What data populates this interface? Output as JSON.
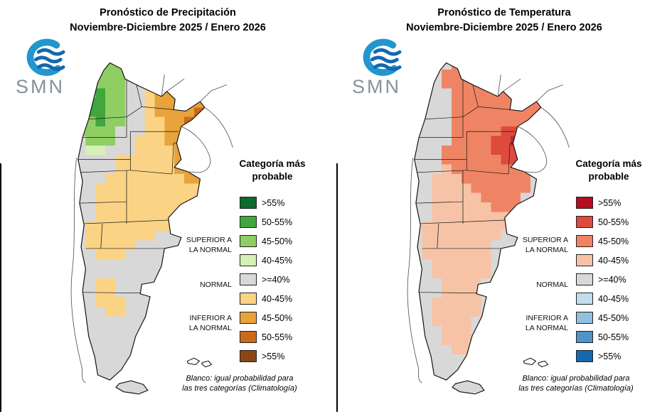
{
  "panels": [
    {
      "title_line1": "Pronóstico de Precipitación",
      "title_line2": "Noviembre-Diciembre 2025 / Enero 2026",
      "logo_text": "SMN",
      "legend": {
        "title_line1": "Categoría más",
        "title_line2": "probable",
        "items": [
          {
            "label": ">55%",
            "color": "#0c6b2d"
          },
          {
            "label": "50-55%",
            "color": "#41a63c"
          },
          {
            "label": "45-50%",
            "color": "#8fce63"
          },
          {
            "label": "40-45%",
            "color": "#d7f0b6"
          },
          {
            "label": ">=40%",
            "color": "#d8d8d8"
          },
          {
            "label": "40-45%",
            "color": "#fbd384"
          },
          {
            "label": "45-50%",
            "color": "#e8a33b"
          },
          {
            "label": "50-55%",
            "color": "#cc6a1b"
          },
          {
            "label": ">55%",
            "color": "#8a4715"
          }
        ],
        "groups": {
          "superior_line1": "SUPERIOR A",
          "superior_line2": "LA NORMAL",
          "normal": "NORMAL",
          "inferior_line1": "INFERIOR A",
          "inferior_line2": "LA NORMAL"
        }
      },
      "footnote_line1": "Blanco: igual probabilidad para",
      "footnote_line2": "las tres categorías (Climatología)",
      "map": {
        "palette": {
          "N": "#d8d8d8",
          "G": "#8fce63",
          "D": "#41a63c",
          "g": "#d7f0b6",
          "Y": "#fbd384",
          "O": "#e8a33b",
          "B": "#cc6a1b",
          "W": "#8a4715"
        },
        "grid": [
          "NNNGGGNNNNNNNNNN",
          "NNGGGGNNNNNNNNNN",
          "NGGGGGNNYYOOOONN",
          "NGGDGGNNYOOOOONN",
          "NGDDGGNNYOOOOOON",
          "NGDDGGNNYOOOOBON",
          "NGGDGGNNYYOOBBON",
          "NGGGGNNNYYOOOBON",
          "NNGGGNNYYYOOOOON",
          "NNggNNNYYYYOOONN",
          "NNNNNYYYYYYOOONN",
          "NNNNNYYYYYYOOBNN",
          "NNNNYYYYYYYYOONN",
          "NNNYYYYYYYYYYYNN",
          "NNNYYYYYYYYYYYNN",
          "NNNYYYYYYYYYYNNN",
          "NNNYYYYYYYYYNNNN",
          "NNYYYYYYYYYNNNNN",
          "NNYYYYYYYNNNNNNN",
          "NNYYYYYNNNNNNNNN",
          "NNNYYYNNNNNNNNNN",
          "NNNNNNNNNNNNNNNN",
          "NNNNNNNNNNNNNNNN",
          "NNNYYNNNNNNNNNNN",
          "NNNYYNNNNNNNNNNN",
          "NNNYYYNNNNNNNNNN",
          "NNNNYYNNNNNNNNNN",
          "NNNNNNNNNNNNNNNN",
          "NNNNNNNNNNNNNNNN",
          "NNNNNNNNNNNNNNNN",
          "NNNNNNNNYYNNNNNN",
          "NNNNNNNYYNNNNNNN",
          "NNNNNNNNNNNNNNNN",
          "NNNNNNNNNNNNNNNN",
          "NNNNNNNNNNNNNNNN"
        ]
      }
    },
    {
      "title_line1": "Pronóstico de Temperatura",
      "title_line2": "Noviembre-Diciembre 2025 / Enero 2026",
      "logo_text": "SMN",
      "legend": {
        "title_line1": "Categoría más",
        "title_line2": "probable",
        "items": [
          {
            "label": ">55%",
            "color": "#b60d24"
          },
          {
            "label": "50-55%",
            "color": "#df4a3e"
          },
          {
            "label": "45-50%",
            "color": "#ef8464"
          },
          {
            "label": "40-45%",
            "color": "#f7c3a7"
          },
          {
            "label": ">=40%",
            "color": "#d8d8d8"
          },
          {
            "label": "40-45%",
            "color": "#c3dcee"
          },
          {
            "label": "45-50%",
            "color": "#92c0de"
          },
          {
            "label": "50-55%",
            "color": "#4e94c8"
          },
          {
            "label": ">55%",
            "color": "#1668ad"
          }
        ],
        "groups": {
          "superior_line1": "SUPERIOR A",
          "superior_line2": "LA NORMAL",
          "normal": "NORMAL",
          "inferior_line1": "INFERIOR A",
          "inferior_line2": "LA NORMAL"
        }
      },
      "footnote_line1": "Blanco: igual probabilidad para",
      "footnote_line2": "las tres categorías (Climatología)",
      "map": {
        "palette": {
          "N": "#d8d8d8",
          "S": "#ef8464",
          "R": "#df4a3e",
          "D": "#c2252f",
          "P": "#f7c3a7"
        },
        "grid": [
          "NNNNNSSNNNNNNNNN",
          "NNNNSSSSSSNNNNNN",
          "NNNNSSSSSSSSNNNN",
          "NNNNNSSSSSSSSNNN",
          "NNNNNSSSSSSSSSSN",
          "NNNNNSSSSSSSSSSN",
          "NNNNNSSSSSSSSSNN",
          "NNNNNSSSSSRRSSNN",
          "NNNNNSSSSRRDRSNN",
          "NNNNSSSSSRRRRNNN",
          "NNNNSSSSSSRRSNNN",
          "NNNNPSSSSSSSSNNN",
          "NNNPPPSSSSSSSNNN",
          "NNNPPPPSSSSSSNNN",
          "NNNPPPPPSSSSNNNN",
          "NNNPPPPPPSSSNNNN",
          "NNNPPPPPPPPNNNNN",
          "NNPPPPPPPPPNNNNN",
          "NNPPPPPPPPNNNNNN",
          "NNPPPPPPPNNNNNNN",
          "NNPPPPPPPNNNNNNN",
          "NNNPPPPPPNNNNNNN",
          "NNNPPPPPPNNNNNNN",
          "NNNNPPPPNNNNNNNN",
          "NNNNPPPPNNNNNNNN",
          "NNNPPPPPNNNNNNNN",
          "NNNPPPPPNNNNNNNN",
          "NNNPPPPNNNNNNNNN",
          "NNNNPPPNNNNNNNNN",
          "NNNNPPPNNNNNNNNN",
          "NNNNNPPNNNNNNNNN",
          "NNNNNNNNNNNNNNNN",
          "NNNNNNNNNNNNNNNN",
          "NNNNNNNNNNNNNNNN",
          "NNNNNNNNNNNNNNNN"
        ]
      }
    }
  ]
}
